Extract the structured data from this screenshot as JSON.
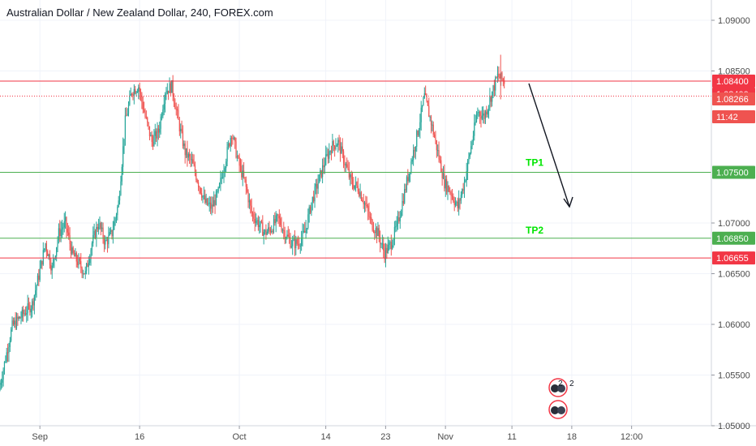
{
  "header": {
    "title": "Australian Dollar / New Zealand Dollar, 240, FOREX.com"
  },
  "chart_data": {
    "type": "candlestick",
    "title": "Australian Dollar / New Zealand Dollar, 240, FOREX.com",
    "ylim": [
      1.05,
      1.092
    ],
    "y_ticks": [
      {
        "value": 1.09,
        "label": "1.09000"
      },
      {
        "value": 1.085,
        "label": "1.08500"
      },
      {
        "value": 1.07,
        "label": "1.07000"
      },
      {
        "value": 1.065,
        "label": "1.06500"
      },
      {
        "value": 1.06,
        "label": "1.06000"
      },
      {
        "value": 1.055,
        "label": "1.05500"
      },
      {
        "value": 1.05,
        "label": "1.05000"
      }
    ],
    "x_ticks": [
      {
        "day": 1,
        "label": "Sep"
      },
      {
        "day": 16,
        "label": "16"
      },
      {
        "day": 31,
        "label": "Oct"
      },
      {
        "day": 44,
        "label": "14"
      },
      {
        "day": 53,
        "label": "23"
      },
      {
        "day": 62,
        "label": "Nov"
      },
      {
        "day": 72,
        "label": "11"
      },
      {
        "day": 81,
        "label": "18"
      },
      {
        "day": 90,
        "label": "12:00"
      }
    ],
    "xlim": [
      -5,
      102
    ],
    "price_path": [
      [
        -5,
        1.0535
      ],
      [
        -3,
        1.0598
      ],
      [
        0,
        1.062
      ],
      [
        1,
        1.0648
      ],
      [
        2,
        1.068
      ],
      [
        3,
        1.0655
      ],
      [
        4,
        1.069
      ],
      [
        5,
        1.07
      ],
      [
        6,
        1.067
      ],
      [
        7,
        1.066
      ],
      [
        8,
        1.065
      ],
      [
        9,
        1.068
      ],
      [
        10,
        1.07
      ],
      [
        11,
        1.068
      ],
      [
        12,
        1.069
      ],
      [
        13,
        1.072
      ],
      [
        14,
        1.08
      ],
      [
        15,
        1.083
      ],
      [
        16,
        1.0835
      ],
      [
        17,
        1.0805
      ],
      [
        18,
        1.078
      ],
      [
        19,
        1.079
      ],
      [
        20,
        1.083
      ],
      [
        21,
        1.0835
      ],
      [
        22,
        1.08
      ],
      [
        23,
        1.077
      ],
      [
        24,
        1.076
      ],
      [
        25,
        1.074
      ],
      [
        26,
        1.072
      ],
      [
        27,
        1.0715
      ],
      [
        28,
        1.073
      ],
      [
        29,
        1.076
      ],
      [
        30,
        1.079
      ],
      [
        31,
        1.076
      ],
      [
        32,
        1.074
      ],
      [
        33,
        1.071
      ],
      [
        34,
        1.07
      ],
      [
        35,
        1.069
      ],
      [
        36,
        1.0695
      ],
      [
        37,
        1.0705
      ],
      [
        38,
        1.069
      ],
      [
        39,
        1.068
      ],
      [
        40,
        1.068
      ],
      [
        41,
        1.069
      ],
      [
        42,
        1.072
      ],
      [
        43,
        1.074
      ],
      [
        44,
        1.076
      ],
      [
        45,
        1.0775
      ],
      [
        46,
        1.078
      ],
      [
        47,
        1.076
      ],
      [
        48,
        1.074
      ],
      [
        49,
        1.0735
      ],
      [
        50,
        1.072
      ],
      [
        51,
        1.07
      ],
      [
        52,
        1.069
      ],
      [
        53,
        1.067
      ],
      [
        54,
        1.068
      ],
      [
        55,
        1.07
      ],
      [
        56,
        1.073
      ],
      [
        57,
        1.076
      ],
      [
        58,
        1.079
      ],
      [
        59,
        1.0825
      ],
      [
        60,
        1.08
      ],
      [
        61,
        1.077
      ],
      [
        62,
        1.074
      ],
      [
        63,
        1.073
      ],
      [
        64,
        1.0715
      ],
      [
        65,
        1.074
      ],
      [
        66,
        1.0775
      ],
      [
        67,
        1.081
      ],
      [
        68,
        1.0805
      ],
      [
        69,
        1.0825
      ],
      [
        70,
        1.0845
      ],
      [
        71,
        1.084
      ]
    ],
    "horizontal_lines": [
      {
        "value": 1.084,
        "color": "#f23645",
        "style": "solid",
        "label": "1.08400"
      },
      {
        "value": 1.0838,
        "color": "#f23645",
        "style": "dotted",
        "label": "1.08400"
      },
      {
        "value": 1.075,
        "color": "#4caf50",
        "style": "solid",
        "label": "1.07500"
      },
      {
        "value": 1.0685,
        "color": "#4caf50",
        "style": "solid",
        "label": "1.06850"
      },
      {
        "value": 1.06655,
        "color": "#f23645",
        "style": "solid",
        "label": "1.06655"
      }
    ],
    "price_tags": [
      {
        "value": 1.084,
        "label": "1.08400",
        "bg": "#f23645"
      },
      {
        "value": 1.084,
        "label": "1.08400",
        "bg": "#f23645",
        "offset": 1
      },
      {
        "value": 1.08266,
        "label": "1.08266",
        "bg": "#ef5350"
      },
      {
        "value": 1.081,
        "label": "11:42",
        "bg": "#ef5350"
      },
      {
        "value": 1.075,
        "label": "1.07500",
        "bg": "#4caf50"
      },
      {
        "value": 1.0685,
        "label": "1.06850",
        "bg": "#4caf50"
      },
      {
        "value": 1.06655,
        "label": "1.06655",
        "bg": "#f23645"
      }
    ],
    "annotations": [
      {
        "label": "TP1",
        "color": "#00e600"
      },
      {
        "label": "TP2",
        "color": "#00e600"
      }
    ],
    "events": [
      {
        "label": "2"
      },
      {
        "label": "2"
      }
    ],
    "colors": {
      "up": "#26a69a",
      "down": "#ef5350",
      "grid": "#f0f3fa",
      "axis": "#9598a1"
    }
  }
}
